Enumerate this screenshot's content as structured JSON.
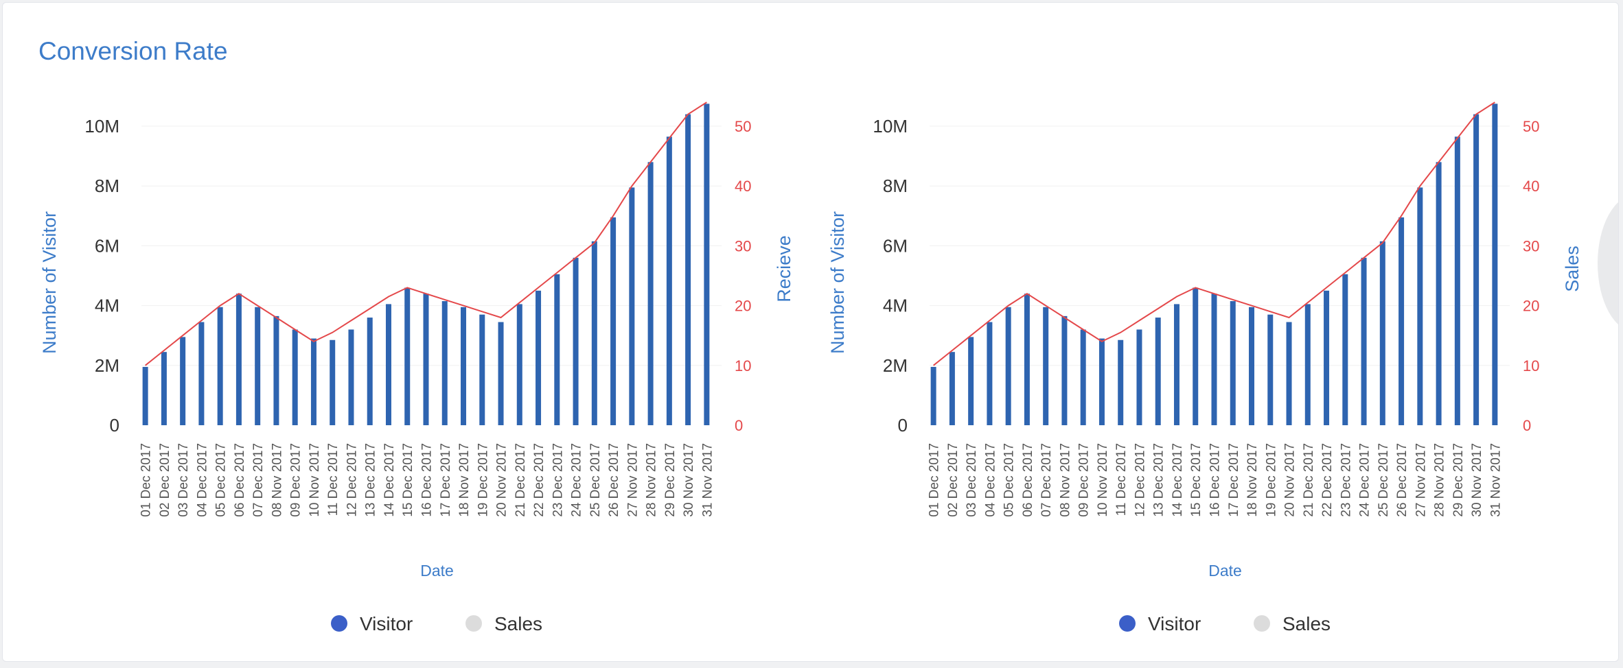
{
  "card": {
    "title": "Conversion Rate"
  },
  "colors": {
    "title": "#3d7cc9",
    "bar": "#2e64b0",
    "line": "#e4484a",
    "right_axis": "#e4484a",
    "legend_visitor": "#3b5fc8",
    "legend_sales": "#dcdcdc"
  },
  "chart_data": [
    {
      "type": "bar",
      "xlabel": "Date",
      "ylabel": "Number of Visitor",
      "y2label": "Recieve",
      "ylim": [
        0,
        10000000
      ],
      "y2lim": [
        0,
        50
      ],
      "y_ticks": [
        "0",
        "2M",
        "4M",
        "6M",
        "8M",
        "10M"
      ],
      "y2_ticks": [
        "0",
        "10",
        "20",
        "30",
        "40",
        "50"
      ],
      "categories": [
        "01 Dec 2017",
        "02 Dec 2017",
        "03 Dec 2017",
        "04 Dec 2017",
        "05 Dec 2017",
        "06 Dec 2017",
        "07 Dec 2017",
        "08 Nov 2017",
        "09 Dec 2017",
        "10 Nov 2017",
        "11 Dec 2017",
        "12 Dec 2017",
        "13 Dec 2017",
        "14 Dec 2017",
        "15 Dec 2017",
        "16 Dec 2017",
        "17 Dec 2017",
        "18 Nov 2017",
        "19 Dec 2017",
        "20 Nov 2017",
        "21 Dec 2017",
        "22 Dec 2017",
        "23 Dec 2017",
        "24 Dec 2017",
        "25 Dec 2017",
        "26 Dec 2017",
        "27 Nov 2017",
        "28 Nov 2017",
        "29 Dec 2017",
        "30 Nov 2017",
        "31 Nov 2017"
      ],
      "series": [
        {
          "name": "Visitor",
          "values": [
            1950000,
            2450000,
            2950000,
            3450000,
            3950000,
            4400000,
            3950000,
            3650000,
            3200000,
            2900000,
            2850000,
            3200000,
            3600000,
            4050000,
            4600000,
            4400000,
            4150000,
            3950000,
            3700000,
            3450000,
            4050000,
            4500000,
            5050000,
            5600000,
            6150000,
            6950000,
            7950000,
            8800000,
            9650000,
            10400000,
            10750000
          ]
        },
        {
          "name": "Sales",
          "values": [
            10,
            12.5,
            15,
            17.5,
            20,
            22,
            20,
            18,
            16,
            14,
            15.5,
            17.5,
            19.5,
            21.5,
            23,
            22,
            21,
            20,
            19,
            18,
            20.5,
            23,
            25.5,
            28,
            30.5,
            35,
            40,
            44,
            48,
            52,
            54
          ]
        }
      ],
      "legend": [
        "Visitor",
        "Sales"
      ],
      "legend_position": "bottom"
    },
    {
      "type": "bar",
      "xlabel": "Date",
      "ylabel": "Number of Visitor",
      "y2label": "Sales",
      "ylim": [
        0,
        10000000
      ],
      "y2lim": [
        0,
        50
      ],
      "y_ticks": [
        "0",
        "2M",
        "4M",
        "6M",
        "8M",
        "10M"
      ],
      "y2_ticks": [
        "0",
        "10",
        "20",
        "30",
        "40",
        "50"
      ],
      "categories": [
        "01 Dec 2017",
        "02 Dec 2017",
        "03 Dec 2017",
        "04 Dec 2017",
        "05 Dec 2017",
        "06 Dec 2017",
        "07 Dec 2017",
        "08 Nov 2017",
        "09 Dec 2017",
        "10 Nov 2017",
        "11 Dec 2017",
        "12 Dec 2017",
        "13 Dec 2017",
        "14 Dec 2017",
        "15 Dec 2017",
        "16 Dec 2017",
        "17 Dec 2017",
        "18 Nov 2017",
        "19 Dec 2017",
        "20 Nov 2017",
        "21 Dec 2017",
        "22 Dec 2017",
        "23 Dec 2017",
        "24 Dec 2017",
        "25 Dec 2017",
        "26 Dec 2017",
        "27 Nov 2017",
        "28 Nov 2017",
        "29 Dec 2017",
        "30 Nov 2017",
        "31 Nov 2017"
      ],
      "series": [
        {
          "name": "Visitor",
          "values": [
            1950000,
            2450000,
            2950000,
            3450000,
            3950000,
            4400000,
            3950000,
            3650000,
            3200000,
            2900000,
            2850000,
            3200000,
            3600000,
            4050000,
            4600000,
            4400000,
            4150000,
            3950000,
            3700000,
            3450000,
            4050000,
            4500000,
            5050000,
            5600000,
            6150000,
            6950000,
            7950000,
            8800000,
            9650000,
            10400000,
            10750000
          ]
        },
        {
          "name": "Sales",
          "values": [
            10,
            12.5,
            15,
            17.5,
            20,
            22,
            20,
            18,
            16,
            14,
            15.5,
            17.5,
            19.5,
            21.5,
            23,
            22,
            21,
            20,
            19,
            18,
            20.5,
            23,
            25.5,
            28,
            30.5,
            35,
            40,
            44,
            48,
            52,
            54
          ]
        }
      ],
      "legend": [
        "Visitor",
        "Sales"
      ],
      "legend_position": "bottom"
    }
  ]
}
